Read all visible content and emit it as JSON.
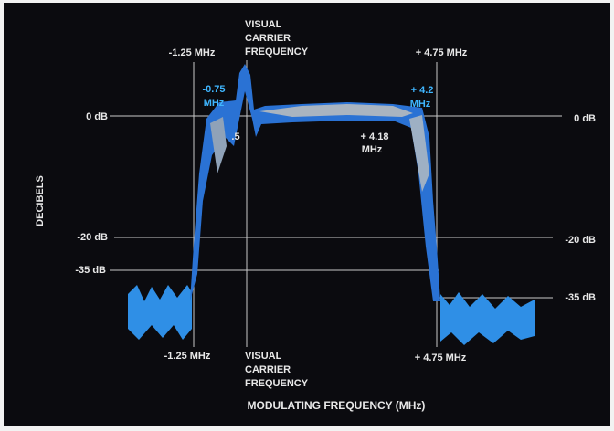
{
  "top_labels": {
    "left_marker": "-1.25 MHz",
    "carrier": [
      "VISUAL",
      "CARRIER",
      "FREQUENCY"
    ],
    "right_marker": "+ 4.75 MHz"
  },
  "bottom_labels": {
    "left_marker": "-1.25 MHz",
    "carrier": [
      "VISUAL",
      "CARRIER",
      "FREQUENCY"
    ],
    "right_marker": "+ 4.75 MHz"
  },
  "left_levels": [
    "0 dB",
    "-20 dB",
    "-35 dB"
  ],
  "right_levels": [
    "0 dB",
    "-20 dB",
    "-35 dB"
  ],
  "annotations": {
    "minus_075": [
      "-0.75",
      "MHz"
    ],
    "minus_15": ".5",
    "plus_42": [
      "+ 4.2",
      "MHz"
    ],
    "plus_418": [
      "+ 4.18",
      "MHz"
    ]
  },
  "y_axis_label": "DECIBELS",
  "x_axis_label": "MODULATING FREQUENCY (MHz)"
}
